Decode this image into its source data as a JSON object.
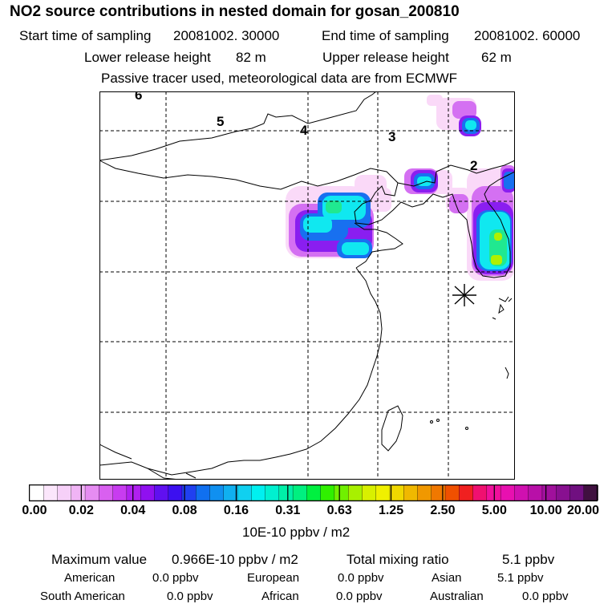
{
  "header": {
    "title": "NO2 source contributions in nested domain for gosan_200810",
    "start_label": "Start time of sampling",
    "start_value": "20081002. 30000",
    "end_label": "End time of sampling",
    "end_value": "20081002. 60000",
    "lower_label": "Lower release height",
    "lower_value": "82 m",
    "upper_label": "Upper release height",
    "upper_value": "62 m",
    "note": "Passive tracer used, meteorological data are from ECMWF"
  },
  "map": {
    "grid_labels": [
      "6",
      "5",
      "4",
      "3",
      "2"
    ],
    "receptor_marker": "asterisk-marker",
    "coastline_color": "#000000"
  },
  "colorbar": {
    "ticks": [
      "0.00",
      "0.02",
      "0.04",
      "0.08",
      "0.16",
      "0.31",
      "0.63",
      "1.25",
      "2.50",
      "5.00",
      "10.00",
      "20.00"
    ],
    "colors": [
      "#ffffff",
      "#fbe6fb",
      "#f6d0f8",
      "#f0b4f5",
      "#e68cf2",
      "#d960f0",
      "#c83cf0",
      "#b020f0",
      "#9010f0",
      "#6010f0",
      "#3c10f0",
      "#2040f0",
      "#1070f0",
      "#1090f0",
      "#10b0f0",
      "#10d0f0",
      "#00f0f0",
      "#00f0d0",
      "#00f0a8",
      "#00f080",
      "#00f040",
      "#30f000",
      "#70f000",
      "#a8f000",
      "#d8f000",
      "#f0f000",
      "#f0d800",
      "#f0b800",
      "#f09800",
      "#f07800",
      "#f05000",
      "#f02020",
      "#f01070",
      "#f0109c",
      "#e810b0",
      "#d010b0",
      "#b810a8",
      "#a0109c",
      "#881090",
      "#701080",
      "#401040"
    ],
    "unit": "10E-10 ppbv / m2"
  },
  "footer": {
    "max_label": "Maximum value",
    "max_value": "0.966E-10 ppbv / m2",
    "total_label": "Total mixing ratio",
    "total_value": "5.1 ppbv",
    "regions": [
      {
        "name": "American",
        "value": "0.0 ppbv"
      },
      {
        "name": "European",
        "value": "0.0 ppbv"
      },
      {
        "name": "Asian",
        "value": "5.1 ppbv"
      },
      {
        "name": "South American",
        "value": "0.0 ppbv"
      },
      {
        "name": "African",
        "value": "0.0 ppbv"
      },
      {
        "name": "Australian",
        "value": "0.0 ppbv"
      }
    ]
  }
}
